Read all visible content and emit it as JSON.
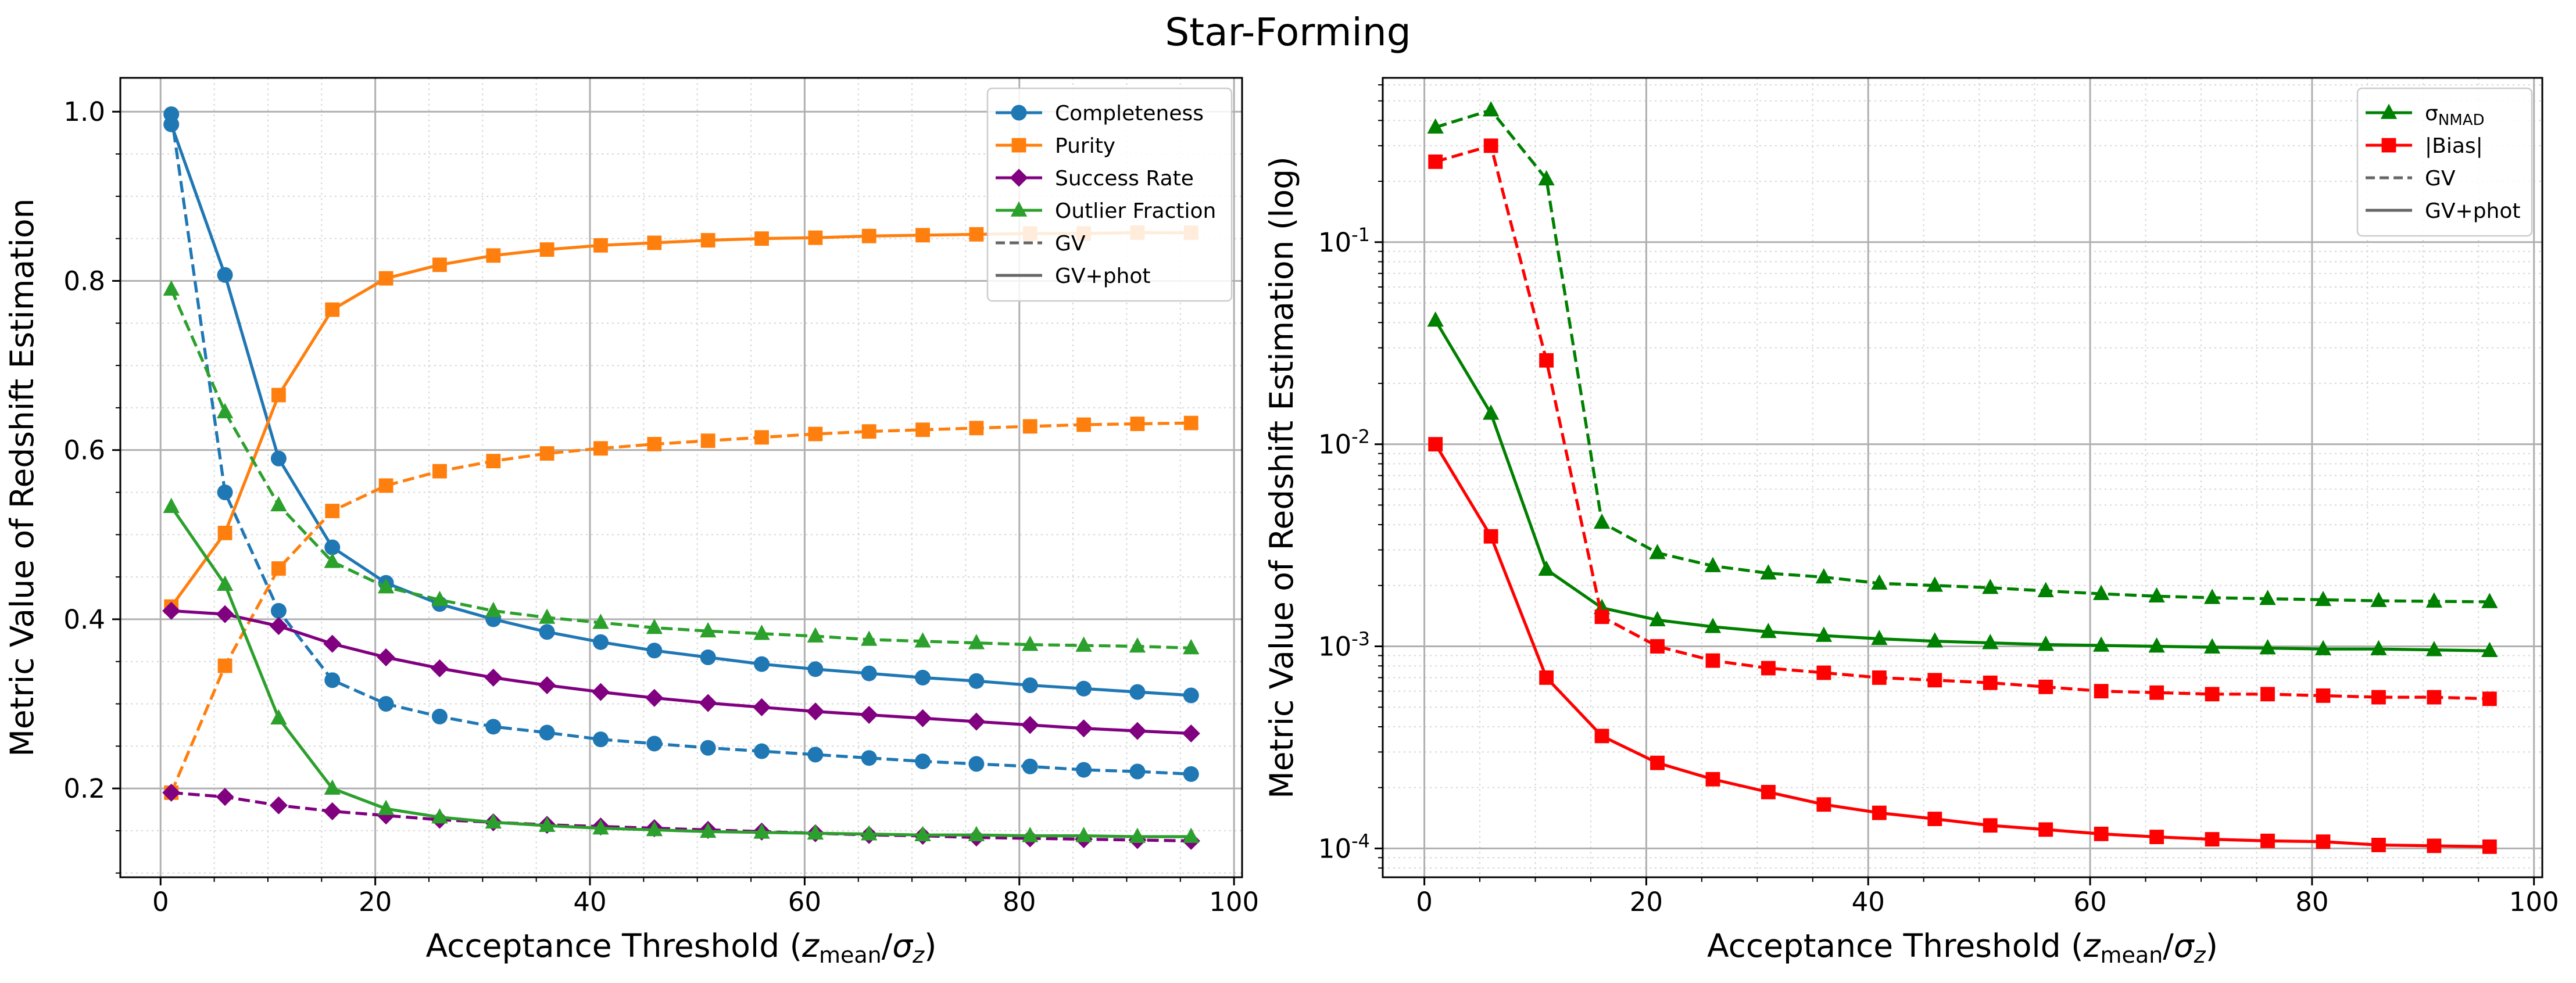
{
  "figure": {
    "title": "Star-Forming"
  },
  "chart_data": [
    {
      "type": "line",
      "panel": "left",
      "title": "",
      "xlabel_main": "Acceptance Threshold (",
      "xlabel_math": {
        "num": "z",
        "num_sub": "mean",
        "den": "σ",
        "den_sub": "z"
      },
      "xlabel_close": ")",
      "ylabel": "Metric Value of Redshift Estimation",
      "xlim": [
        -3.75,
        100.75
      ],
      "ylim": [
        0.095,
        1.04
      ],
      "yscale": "linear",
      "xticks": [
        0,
        20,
        40,
        60,
        80,
        100
      ],
      "yticks": [
        0.2,
        0.4,
        0.6,
        0.8,
        1.0
      ],
      "ytick_labels": [
        "0.2",
        "0.4",
        "0.6",
        "0.8",
        "1.0"
      ],
      "grid": true,
      "legend_placement": "top-right",
      "x": [
        1,
        6,
        11,
        16,
        21,
        26,
        31,
        36,
        41,
        46,
        51,
        56,
        61,
        66,
        71,
        76,
        81,
        86,
        91,
        96
      ],
      "series": [
        {
          "name": "Completeness",
          "method": "GV+phot",
          "color": "#1f77b4",
          "marker": "circle",
          "dash": false,
          "values": [
            0.985,
            0.807,
            0.59,
            0.485,
            0.443,
            0.418,
            0.4,
            0.385,
            0.373,
            0.363,
            0.355,
            0.347,
            0.341,
            0.336,
            0.331,
            0.327,
            0.322,
            0.318,
            0.314,
            0.31
          ]
        },
        {
          "name": "Completeness",
          "method": "GV",
          "color": "#1f77b4",
          "marker": "circle",
          "dash": true,
          "values": [
            0.997,
            0.55,
            0.41,
            0.328,
            0.3,
            0.285,
            0.273,
            0.266,
            0.258,
            0.253,
            0.248,
            0.244,
            0.24,
            0.236,
            0.232,
            0.229,
            0.226,
            0.222,
            0.22,
            0.217
          ]
        },
        {
          "name": "Purity",
          "method": "GV+phot",
          "color": "#ff7f0e",
          "marker": "square",
          "dash": false,
          "values": [
            0.415,
            0.502,
            0.665,
            0.766,
            0.803,
            0.819,
            0.83,
            0.837,
            0.842,
            0.845,
            0.848,
            0.85,
            0.851,
            0.853,
            0.854,
            0.855,
            0.856,
            0.856,
            0.857,
            0.857
          ]
        },
        {
          "name": "Purity",
          "method": "GV",
          "color": "#ff7f0e",
          "marker": "square",
          "dash": true,
          "values": [
            0.195,
            0.345,
            0.46,
            0.528,
            0.558,
            0.575,
            0.587,
            0.596,
            0.602,
            0.607,
            0.611,
            0.615,
            0.619,
            0.622,
            0.624,
            0.626,
            0.628,
            0.63,
            0.631,
            0.632
          ]
        },
        {
          "name": "Success Rate",
          "method": "GV+phot",
          "color": "#800080",
          "marker": "diamond",
          "dash": false,
          "values": [
            0.41,
            0.406,
            0.392,
            0.371,
            0.355,
            0.342,
            0.331,
            0.322,
            0.314,
            0.307,
            0.301,
            0.296,
            0.291,
            0.287,
            0.283,
            0.279,
            0.275,
            0.271,
            0.268,
            0.265
          ]
        },
        {
          "name": "Success Rate",
          "method": "GV",
          "color": "#800080",
          "marker": "diamond",
          "dash": true,
          "values": [
            0.195,
            0.19,
            0.18,
            0.173,
            0.168,
            0.163,
            0.16,
            0.157,
            0.155,
            0.153,
            0.151,
            0.149,
            0.147,
            0.145,
            0.144,
            0.142,
            0.141,
            0.14,
            0.139,
            0.138
          ]
        },
        {
          "name": "Outlier Fraction",
          "method": "GV+phot",
          "color": "#2ca02c",
          "marker": "triangle",
          "dash": false,
          "values": [
            0.533,
            0.441,
            0.283,
            0.2,
            0.176,
            0.166,
            0.16,
            0.156,
            0.153,
            0.151,
            0.149,
            0.148,
            0.147,
            0.146,
            0.145,
            0.145,
            0.144,
            0.144,
            0.143,
            0.143
          ]
        },
        {
          "name": "Outlier Fraction",
          "method": "GV",
          "color": "#2ca02c",
          "marker": "triangle",
          "dash": true,
          "values": [
            0.79,
            0.645,
            0.535,
            0.468,
            0.438,
            0.423,
            0.41,
            0.402,
            0.396,
            0.39,
            0.386,
            0.383,
            0.38,
            0.376,
            0.374,
            0.372,
            0.37,
            0.369,
            0.368,
            0.366
          ]
        }
      ],
      "legend": [
        {
          "label": "Completeness",
          "color": "#1f77b4",
          "marker": "circle",
          "dash": false
        },
        {
          "label": "Purity",
          "color": "#ff7f0e",
          "marker": "square",
          "dash": false
        },
        {
          "label": "Success Rate",
          "color": "#800080",
          "marker": "diamond",
          "dash": false
        },
        {
          "label": "Outlier Fraction",
          "color": "#2ca02c",
          "marker": "triangle",
          "dash": false
        },
        {
          "label": "GV",
          "color": "#666666",
          "marker": "none",
          "dash": true
        },
        {
          "label": "GV+phot",
          "color": "#666666",
          "marker": "none",
          "dash": false
        }
      ]
    },
    {
      "type": "line",
      "panel": "right",
      "title": "",
      "xlabel_main": "Acceptance Threshold (",
      "xlabel_math": {
        "num": "z",
        "num_sub": "mean",
        "den": "σ",
        "den_sub": "z"
      },
      "xlabel_close": ")",
      "ylabel": "Metric Value of Redshift Estimation (log)",
      "xlim": [
        -3.75,
        100.75
      ],
      "ylim": [
        7.2e-05,
        0.65
      ],
      "yscale": "log",
      "xticks": [
        0,
        20,
        40,
        60,
        80,
        100
      ],
      "yticks_exp": [
        -4,
        -3,
        -2,
        -1
      ],
      "grid": true,
      "legend_placement": "top-right",
      "x": [
        1,
        6,
        11,
        16,
        21,
        26,
        31,
        36,
        41,
        46,
        51,
        56,
        61,
        66,
        71,
        76,
        81,
        86,
        91,
        96
      ],
      "series": [
        {
          "name": "σNMAD",
          "method": "GV+phot",
          "color": "#008000",
          "marker": "triangle",
          "dash": false,
          "values": [
            0.041,
            0.0142,
            0.0024,
            0.00155,
            0.00135,
            0.00125,
            0.00118,
            0.00113,
            0.00109,
            0.00106,
            0.00104,
            0.00102,
            0.00101,
            0.001,
            0.00099,
            0.00098,
            0.00097,
            0.00097,
            0.00096,
            0.00095
          ]
        },
        {
          "name": "σNMAD",
          "method": "GV",
          "color": "#008000",
          "marker": "triangle",
          "dash": true,
          "values": [
            0.37,
            0.45,
            0.205,
            0.0041,
            0.0029,
            0.0025,
            0.0023,
            0.0022,
            0.00205,
            0.002,
            0.00195,
            0.00188,
            0.00182,
            0.00177,
            0.00174,
            0.00172,
            0.0017,
            0.00168,
            0.00167,
            0.00166
          ]
        },
        {
          "name": "|Bias|",
          "method": "GV+phot",
          "color": "#ff0000",
          "marker": "square",
          "dash": false,
          "values": [
            0.01,
            0.0035,
            0.0007,
            0.00036,
            0.000265,
            0.00022,
            0.00019,
            0.000165,
            0.00015,
            0.00014,
            0.00013,
            0.000124,
            0.000118,
            0.000114,
            0.000111,
            0.000109,
            0.000108,
            0.000104,
            0.000103,
            0.000102
          ]
        },
        {
          "name": "|Bias|",
          "method": "GV",
          "color": "#ff0000",
          "marker": "square",
          "dash": true,
          "values": [
            0.25,
            0.3,
            0.026,
            0.0014,
            0.001,
            0.00085,
            0.00078,
            0.00074,
            0.0007,
            0.00068,
            0.00066,
            0.00063,
            0.0006,
            0.00059,
            0.00058,
            0.00058,
            0.00057,
            0.00056,
            0.00056,
            0.00055
          ]
        }
      ],
      "legend": [
        {
          "label": "σ",
          "label_sub": "NMAD",
          "color": "#008000",
          "marker": "triangle",
          "dash": false
        },
        {
          "label": "|Bias|",
          "color": "#ff0000",
          "marker": "square",
          "dash": false
        },
        {
          "label": "GV",
          "color": "#666666",
          "marker": "none",
          "dash": true
        },
        {
          "label": "GV+phot",
          "color": "#666666",
          "marker": "none",
          "dash": false
        }
      ]
    }
  ]
}
